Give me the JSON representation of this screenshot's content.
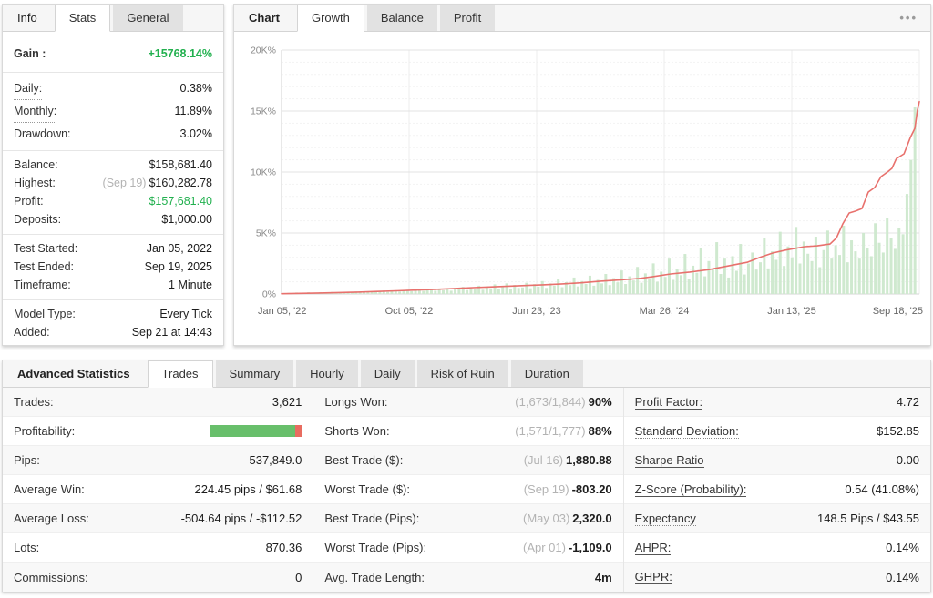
{
  "colors": {
    "green_text": "#21b04e",
    "line_red": "#e8716d",
    "bar_fill": "#cfe9cf",
    "profit_green": "#68bf6b",
    "profit_red": "#e86c60",
    "grid_major": "#e3e3e3",
    "grid_minor": "#f3f3f3",
    "grid_vert": "#ececec",
    "axis_text": "#8a8a8a",
    "xaxis_text": "#666666"
  },
  "info_panel": {
    "label": "Info",
    "tabs": [
      {
        "label": "Stats",
        "active": true
      },
      {
        "label": "General",
        "active": false
      }
    ],
    "groups": [
      [
        {
          "label": "Gain :",
          "label_class": "dotted bold",
          "value": "+15768.14%",
          "value_class": "val-green-bold"
        }
      ],
      [
        {
          "label": "Daily:",
          "label_class": "dotted",
          "value": "0.38%"
        },
        {
          "label": "Monthly:",
          "label_class": "dotted",
          "value": "11.89%"
        },
        {
          "label": "Drawdown:",
          "value": "3.02%"
        }
      ],
      [
        {
          "label": "Balance:",
          "value": "$158,681.40"
        },
        {
          "label": "Highest:",
          "pre": "(Sep 19)",
          "value": "$160,282.78"
        },
        {
          "label": "Profit:",
          "value": "$157,681.40",
          "value_class": "val-green"
        },
        {
          "label": "Deposits:",
          "value": "$1,000.00"
        }
      ],
      [
        {
          "label": "Test Started:",
          "value": "Jan 05, 2022"
        },
        {
          "label": "Test Ended:",
          "value": "Sep 19, 2025"
        },
        {
          "label": "Timeframe:",
          "value": "1 Minute"
        }
      ],
      [
        {
          "label": "Model Type:",
          "value": "Every Tick"
        },
        {
          "label": "Added:",
          "value": "Sep 21 at 14:43"
        }
      ]
    ]
  },
  "chart_panel": {
    "label": "Chart",
    "tabs": [
      {
        "label": "Growth",
        "active": true
      },
      {
        "label": "Balance",
        "active": false
      },
      {
        "label": "Profit",
        "active": false
      }
    ],
    "menu_icon": "•••"
  },
  "chart_data": {
    "type": "line",
    "title": "Growth",
    "ylim": [
      0,
      20000
    ],
    "y_ticks": [
      {
        "value": 0,
        "label": "0%"
      },
      {
        "value": 5000,
        "label": "5K%"
      },
      {
        "value": 10000,
        "label": "10K%"
      },
      {
        "value": 15000,
        "label": "15K%"
      },
      {
        "value": 20000,
        "label": "20K%"
      }
    ],
    "x_ticks": [
      "Jan 05, '22",
      "Oct 05, '22",
      "Jun 23, '23",
      "Mar 26, '24",
      "Jan 13, '25",
      "Sep 18, '25"
    ],
    "grid": true,
    "series": [
      {
        "name": "growth-percent-line",
        "type": "line",
        "points": [
          [
            0,
            20
          ],
          [
            0.03,
            50
          ],
          [
            0.06,
            80
          ],
          [
            0.09,
            120
          ],
          [
            0.12,
            160
          ],
          [
            0.15,
            210
          ],
          [
            0.18,
            260
          ],
          [
            0.21,
            320
          ],
          [
            0.24,
            380
          ],
          [
            0.27,
            450
          ],
          [
            0.3,
            520
          ],
          [
            0.33,
            580
          ],
          [
            0.36,
            650
          ],
          [
            0.39,
            720
          ],
          [
            0.41,
            750
          ],
          [
            0.44,
            830
          ],
          [
            0.47,
            920
          ],
          [
            0.5,
            1050
          ],
          [
            0.53,
            1150
          ],
          [
            0.56,
            1270
          ],
          [
            0.58,
            1400
          ],
          [
            0.61,
            1640
          ],
          [
            0.64,
            1800
          ],
          [
            0.67,
            2000
          ],
          [
            0.7,
            2300
          ],
          [
            0.73,
            2600
          ],
          [
            0.75,
            3000
          ],
          [
            0.77,
            3360
          ],
          [
            0.79,
            3600
          ],
          [
            0.82,
            3880
          ],
          [
            0.84,
            3950
          ],
          [
            0.86,
            4100
          ],
          [
            0.87,
            4600
          ],
          [
            0.88,
            5750
          ],
          [
            0.89,
            6640
          ],
          [
            0.9,
            6800
          ],
          [
            0.91,
            7010
          ],
          [
            0.92,
            8360
          ],
          [
            0.93,
            8730
          ],
          [
            0.94,
            9630
          ],
          [
            0.95,
            10000
          ],
          [
            0.957,
            10300
          ],
          [
            0.964,
            11100
          ],
          [
            0.976,
            11490
          ],
          [
            0.986,
            12840
          ],
          [
            0.993,
            13580
          ],
          [
            0.997,
            15070
          ],
          [
            1,
            15768
          ]
        ]
      },
      {
        "name": "trade-activity-bars",
        "type": "bar",
        "values": [
          60,
          90,
          70,
          120,
          80,
          100,
          140,
          90,
          110,
          150,
          100,
          130,
          170,
          110,
          140,
          180,
          120,
          160,
          200,
          140,
          160,
          210,
          150,
          240,
          190,
          280,
          170,
          250,
          310,
          200,
          270,
          350,
          230,
          290,
          400,
          250,
          330,
          370,
          270,
          430,
          310,
          460,
          270,
          500,
          370,
          580,
          320,
          540,
          410,
          680,
          350,
          620,
          460,
          790,
          390,
          560,
          870,
          430,
          740,
          500,
          540,
          920,
          470,
          810,
          600,
          1060,
          500,
          870,
          680,
          1210,
          560,
          970,
          730,
          1350,
          620,
          1060,
          820,
          1500,
          680,
          1160,
          870,
          1640,
          730,
          1300,
          960,
          1930,
          820,
          1450,
          1110,
          2220,
          920,
          1690,
          1260,
          2510,
          1010,
          1830,
          1400,
          2900,
          1160,
          2030,
          1540,
          3280,
          1250,
          2320,
          1740,
          3760,
          1450,
          2700,
          2030,
          4250,
          1640,
          2900,
          1350,
          3100,
          1900,
          4100,
          1600,
          2500,
          3400,
          2000,
          2600,
          4600,
          2100,
          3500,
          2800,
          5100,
          2300,
          3900,
          3000,
          5500,
          2500,
          4300,
          3300,
          2700,
          4700,
          2200,
          3600,
          5200,
          2900,
          4000,
          3200,
          5600,
          2600,
          4400,
          3500,
          2900,
          5000,
          3800,
          3100,
          5800,
          4200,
          3400,
          6200,
          4600,
          3700,
          5400,
          4900,
          8200,
          11000,
          15300
        ]
      }
    ]
  },
  "stats_panel": {
    "label": "Advanced Statistics",
    "tabs": [
      {
        "label": "Trades",
        "active": true
      },
      {
        "label": "Summary",
        "active": false
      },
      {
        "label": "Hourly",
        "active": false
      },
      {
        "label": "Daily",
        "active": false
      },
      {
        "label": "Risk of Ruin",
        "active": false
      },
      {
        "label": "Duration",
        "active": false
      }
    ],
    "columns": [
      [
        {
          "label": "Trades:",
          "value": "3,621"
        },
        {
          "label": "Profitability:",
          "bar": true,
          "bar_green_pct": 93
        },
        {
          "label": "Pips:",
          "value": "537,849.0"
        },
        {
          "label": "Average Win:",
          "value": "224.45 pips / $61.68"
        },
        {
          "label": "Average Loss:",
          "value": "-504.64 pips / -$112.52"
        },
        {
          "label": "Lots:",
          "value": "870.36"
        },
        {
          "label": "Commissions:",
          "value": "0"
        }
      ],
      [
        {
          "label": "Longs Won:",
          "pre": "(1,673/1,844)",
          "value": "90%",
          "bold": true
        },
        {
          "label": "Shorts Won:",
          "pre": "(1,571/1,777)",
          "value": "88%",
          "bold": true
        },
        {
          "label": "Best Trade ($):",
          "pre": "(Jul 16)",
          "value": "1,880.88",
          "bold": true
        },
        {
          "label": "Worst Trade ($):",
          "pre": "(Sep 19)",
          "value": "-803.20",
          "bold": true
        },
        {
          "label": "Best Trade (Pips):",
          "pre": "(May 03)",
          "value": "2,320.0",
          "bold": true
        },
        {
          "label": "Worst Trade (Pips):",
          "pre": "(Apr 01)",
          "value": "-1,109.0",
          "bold": true
        },
        {
          "label": "Avg. Trade Length:",
          "value": "4m",
          "bold": true
        }
      ],
      [
        {
          "label": "Profit Factor:",
          "u": "solid",
          "value": "4.72"
        },
        {
          "label": "Standard Deviation:",
          "u": "dotted",
          "value": "$152.85"
        },
        {
          "label": "Sharpe Ratio",
          "u": "solid",
          "value": "0.00"
        },
        {
          "label": "Z-Score (Probability):",
          "u": "solid",
          "value": "0.54 (41.08%)"
        },
        {
          "label": "Expectancy",
          "u": "dotted",
          "value": "148.5 Pips / $43.55"
        },
        {
          "label": "AHPR:",
          "u": "solid",
          "value": "0.14%"
        },
        {
          "label": "GHPR:",
          "u": "solid",
          "value": "0.14%"
        }
      ]
    ]
  }
}
